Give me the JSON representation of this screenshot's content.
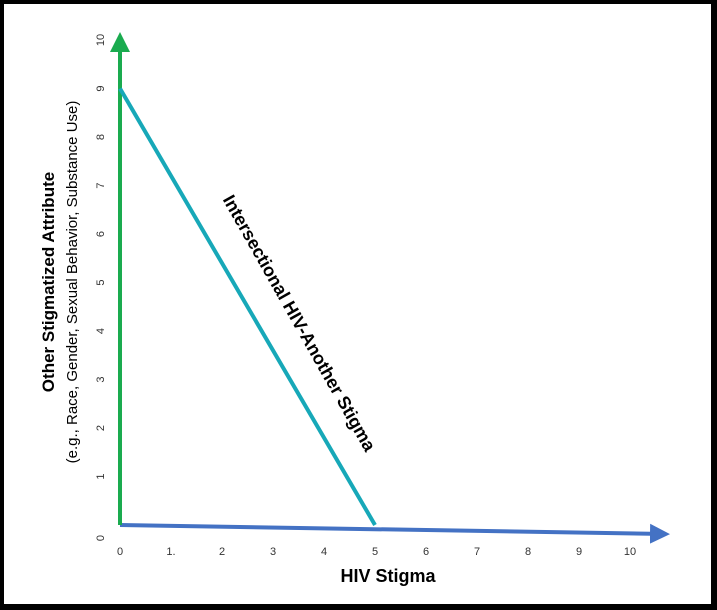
{
  "chart_data": {
    "type": "line",
    "title": "",
    "xlabel": "HIV Stigma",
    "ylabel": "Other Stigmatized Attribute",
    "ylabel_sub": "(e.g., Race, Gender, Sexual Behavior, Substance Use)",
    "x_ticks": [
      "0",
      "1.",
      "2",
      "3",
      "4",
      "5",
      "6",
      "7",
      "8",
      "9",
      "10"
    ],
    "y_ticks": [
      "0",
      "1",
      "2",
      "3",
      "4",
      "5",
      "6",
      "7",
      "8",
      "9",
      "10"
    ],
    "xlim": [
      0,
      10
    ],
    "ylim": [
      0,
      10
    ],
    "grid": false,
    "series": [
      {
        "name": "Intersectional HIV-Another Stigma",
        "x": [
          0,
          5
        ],
        "y": [
          9,
          0
        ],
        "color": "#17a8b8"
      }
    ],
    "colors": {
      "x_axis": "#4472c4",
      "y_axis": "#1aab4f",
      "line": "#17a8b8"
    }
  }
}
